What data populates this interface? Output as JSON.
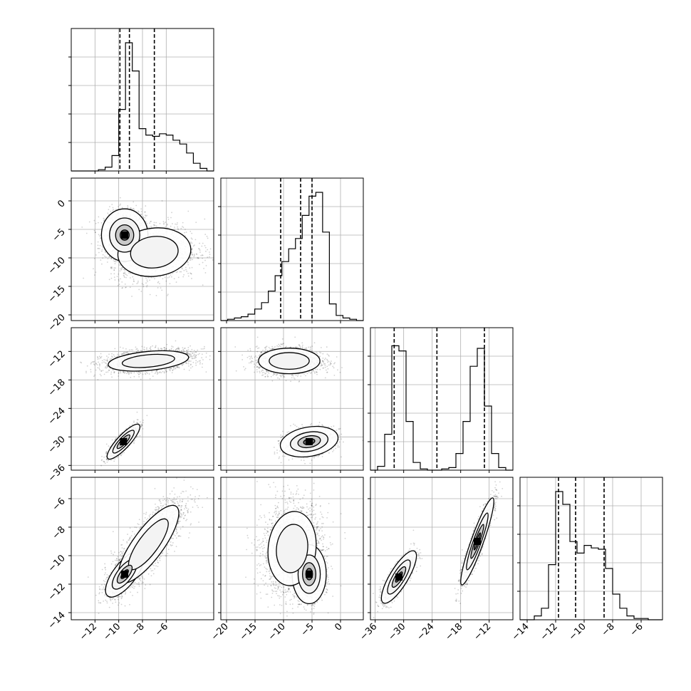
{
  "chart_data": {
    "type": "corner",
    "grid": true,
    "params": [
      {
        "range": [
          -14,
          -2
        ],
        "ticks": [
          -12,
          -10,
          -8,
          -6
        ],
        "tick_labels": [
          "−12",
          "−10",
          "−8",
          "−6"
        ],
        "quantiles": [
          -9.9,
          -9.1,
          -7.0
        ],
        "hist": [
          0,
          0,
          0,
          0,
          0.01,
          0.03,
          0.12,
          0.48,
          1.0,
          0.78,
          0.33,
          0.28,
          0.27,
          0.29,
          0.28,
          0.24,
          0.21,
          0.14,
          0.06,
          0.02,
          0
        ]
      },
      {
        "range": [
          -21,
          4
        ],
        "ticks": [
          -20,
          -15,
          -10,
          -5,
          0
        ],
        "tick_labels": [
          "−20",
          "−15",
          "−10",
          "−5",
          "0"
        ],
        "quantiles": [
          -10.5,
          -7.0,
          -5.0
        ],
        "hist": [
          0,
          0.01,
          0.02,
          0.03,
          0.05,
          0.09,
          0.14,
          0.23,
          0.35,
          0.46,
          0.56,
          0.64,
          0.82,
          0.97,
          1.0,
          0.69,
          0.13,
          0.04,
          0.02,
          0.01,
          0
        ]
      },
      {
        "range": [
          -37,
          -7
        ],
        "ticks": [
          -36,
          -30,
          -24,
          -18,
          -12
        ],
        "tick_labels": [
          "−36",
          "−30",
          "−24",
          "−18",
          "−12"
        ],
        "quantiles": [
          -32.0,
          -23.0,
          -13.0
        ],
        "hist": [
          0,
          0.03,
          0.28,
          0.97,
          0.93,
          0.38,
          0.06,
          0.01,
          0,
          0,
          0.01,
          0.02,
          0.13,
          0.38,
          0.81,
          0.95,
          0.5,
          0.13,
          0.02,
          0
        ]
      },
      {
        "range": [
          -14.5,
          -4.5
        ],
        "ticks": [
          -14,
          -12,
          -10,
          -8,
          -6
        ],
        "tick_labels": [
          "−14",
          "−12",
          "−10",
          "−8",
          "−6"
        ],
        "quantiles": [
          -11.8,
          -10.6,
          -8.6
        ],
        "hist": [
          0,
          0,
          0.03,
          0.09,
          0.43,
          1.0,
          0.9,
          0.61,
          0.52,
          0.58,
          0.56,
          0.55,
          0.4,
          0.2,
          0.09,
          0.03,
          0.01,
          0.01,
          0,
          0
        ]
      }
    ],
    "pairs": [
      {
        "row": 1,
        "col": 0,
        "blobs": [
          {
            "cx": -9.5,
            "cy": -6.0,
            "sx": 0.85,
            "sy": 2.0,
            "rho": 0.0,
            "w": 1.0,
            "n": 1600
          },
          {
            "cx": -7.0,
            "cy": -9.0,
            "sx": 1.8,
            "sy": 2.5,
            "rho": 0.1,
            "w": 0.55,
            "n": 1500
          }
        ]
      },
      {
        "row": 2,
        "col": 0,
        "blobs": [
          {
            "cx": -7.5,
            "cy": -14.0,
            "sx": 1.9,
            "sy": 1.2,
            "rho": 0.35,
            "w": 0.6,
            "n": 1900
          },
          {
            "cx": -9.6,
            "cy": -31.0,
            "sx": 0.6,
            "sy": 1.6,
            "rho": 0.85,
            "w": 1.0,
            "n": 1400
          }
        ]
      },
      {
        "row": 2,
        "col": 1,
        "blobs": [
          {
            "cx": -9.0,
            "cy": -14.0,
            "sx": 2.8,
            "sy": 1.4,
            "rho": 0.0,
            "w": 0.7,
            "n": 1900
          },
          {
            "cx": -5.5,
            "cy": -31.0,
            "sx": 2.2,
            "sy": 1.4,
            "rho": 0.25,
            "w": 1.0,
            "n": 1400
          }
        ]
      },
      {
        "row": 3,
        "col": 0,
        "blobs": [
          {
            "cx": -9.5,
            "cy": -11.3,
            "sx": 0.7,
            "sy": 0.7,
            "rho": 0.7,
            "w": 1.0,
            "n": 1400
          },
          {
            "cx": -7.5,
            "cy": -9.2,
            "sx": 1.5,
            "sy": 1.6,
            "rho": 0.8,
            "w": 0.55,
            "n": 1900
          }
        ]
      },
      {
        "row": 3,
        "col": 1,
        "blobs": [
          {
            "cx": -5.5,
            "cy": -11.3,
            "sx": 1.3,
            "sy": 0.9,
            "rho": 0.0,
            "w": 1.0,
            "n": 1400
          },
          {
            "cx": -8.5,
            "cy": -9.5,
            "sx": 2.6,
            "sy": 1.6,
            "rho": 0.1,
            "w": 0.5,
            "n": 1900
          }
        ]
      },
      {
        "row": 3,
        "col": 2,
        "blobs": [
          {
            "cx": -31.0,
            "cy": -11.5,
            "sx": 1.6,
            "sy": 0.8,
            "rho": 0.8,
            "w": 1.0,
            "n": 1500
          },
          {
            "cx": -14.5,
            "cy": -9.0,
            "sx": 1.6,
            "sy": 1.4,
            "rho": 0.92,
            "w": 0.9,
            "n": 1800
          }
        ]
      }
    ]
  }
}
